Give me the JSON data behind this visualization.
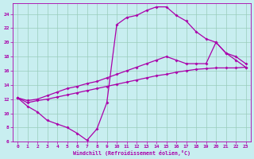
{
  "xlabel": "Windchill (Refroidissement éolien,°C)",
  "bg_color": "#c8eef0",
  "line_color": "#aa00aa",
  "grid_color": "#99ccbb",
  "xlim": [
    -0.5,
    23.5
  ],
  "ylim": [
    6,
    25.5
  ],
  "yticks": [
    6,
    8,
    10,
    12,
    14,
    16,
    18,
    20,
    22,
    24
  ],
  "xticks": [
    0,
    1,
    2,
    3,
    4,
    5,
    6,
    7,
    8,
    9,
    10,
    11,
    12,
    13,
    14,
    15,
    16,
    17,
    18,
    19,
    20,
    21,
    22,
    23
  ],
  "line1_x": [
    0,
    1,
    2,
    3,
    4,
    5,
    6,
    7,
    8,
    9,
    10,
    11,
    12,
    13,
    14,
    15,
    16,
    17,
    18,
    19,
    20,
    21,
    22,
    23
  ],
  "line1_y": [
    12.2,
    11.0,
    10.2,
    9.0,
    8.5,
    8.0,
    7.2,
    6.2,
    7.8,
    11.5,
    22.5,
    23.5,
    23.8,
    24.5,
    25.0,
    25.0,
    23.8,
    23.0,
    21.5,
    20.5,
    20.0,
    18.5,
    17.5,
    16.5
  ],
  "line2_x": [
    0,
    1,
    2,
    3,
    4,
    5,
    6,
    7,
    8,
    9,
    10,
    11,
    12,
    13,
    14,
    15,
    16,
    17,
    18,
    19,
    20,
    21,
    22,
    23
  ],
  "line2_y": [
    12.2,
    11.8,
    12.0,
    12.5,
    13.0,
    13.5,
    13.8,
    14.2,
    14.5,
    15.0,
    15.5,
    16.0,
    16.5,
    17.0,
    17.5,
    18.0,
    17.5,
    17.0,
    17.0,
    17.0,
    20.0,
    18.5,
    18.0,
    17.0
  ],
  "line3_x": [
    0,
    1,
    2,
    3,
    4,
    5,
    6,
    7,
    8,
    9,
    10,
    11,
    12,
    13,
    14,
    15,
    16,
    17,
    18,
    19,
    20,
    21,
    22,
    23
  ],
  "line3_y": [
    12.2,
    11.5,
    11.8,
    12.0,
    12.3,
    12.6,
    12.9,
    13.2,
    13.5,
    13.8,
    14.1,
    14.4,
    14.7,
    15.0,
    15.3,
    15.5,
    15.8,
    16.0,
    16.2,
    16.3,
    16.4,
    16.4,
    16.4,
    16.5
  ]
}
